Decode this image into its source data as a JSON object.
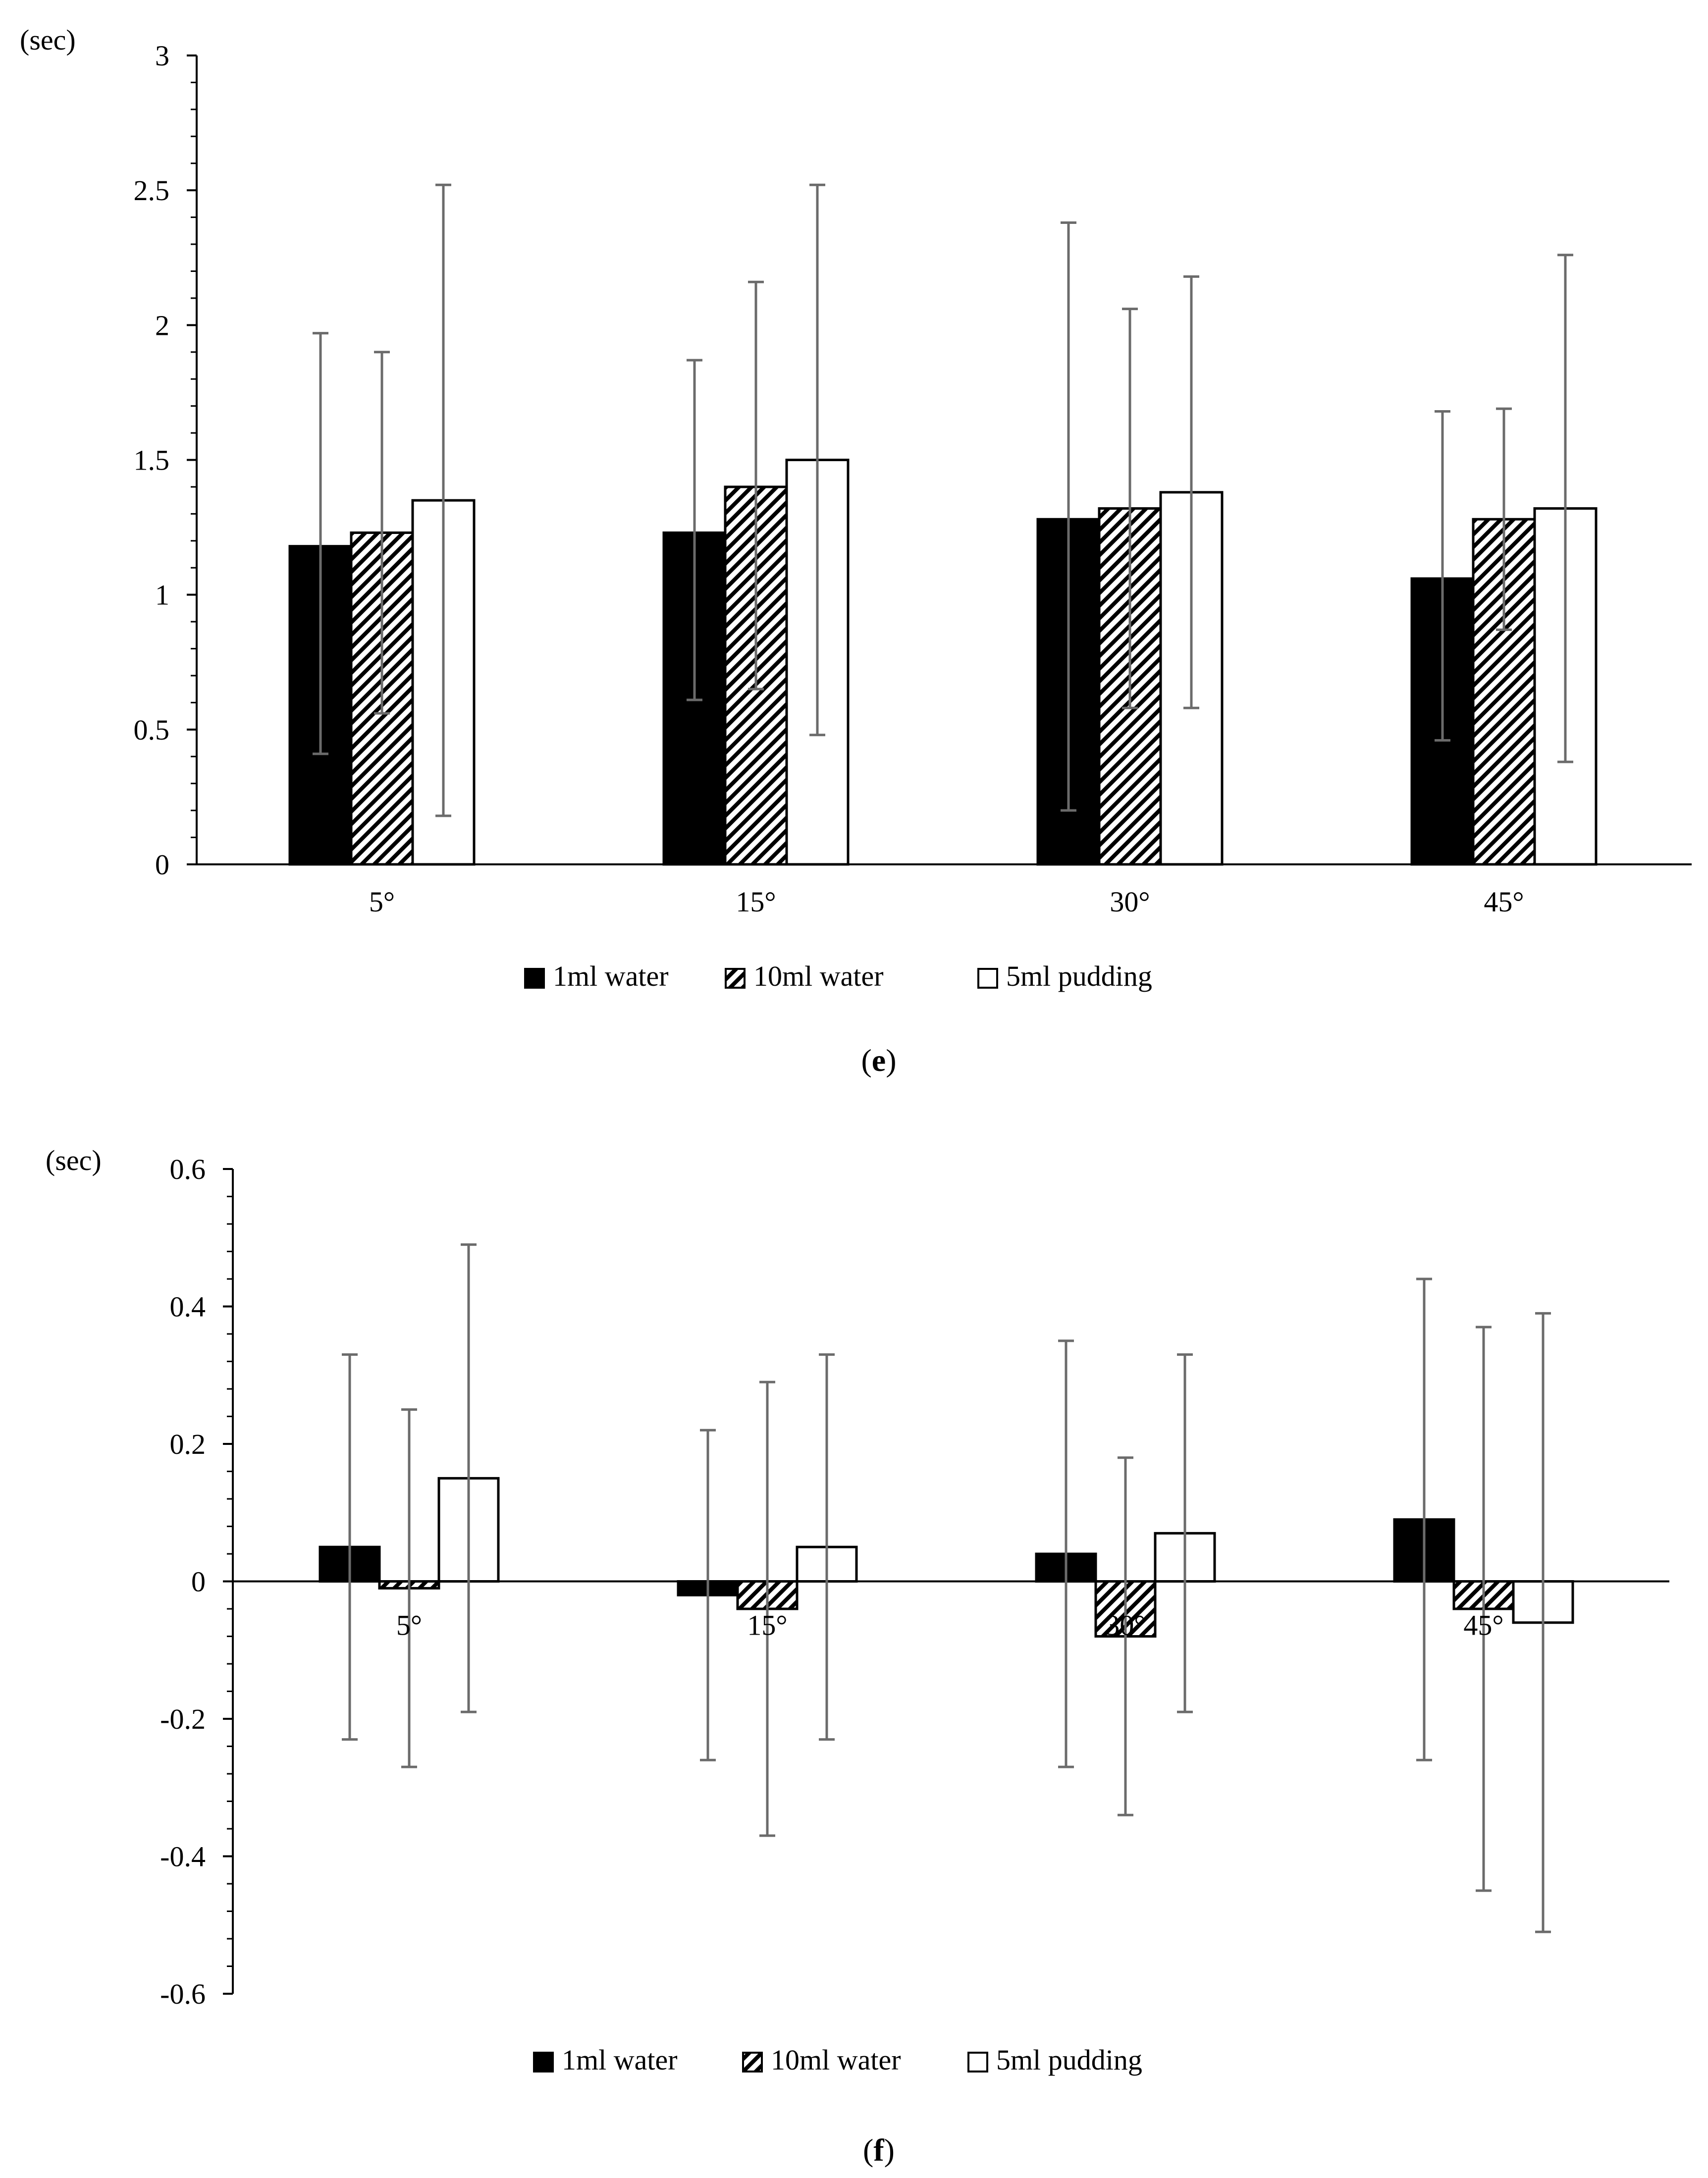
{
  "chart_data": [
    {
      "type": "bar",
      "panel_label": "e",
      "unit_label": "(sec)",
      "categories": [
        "5°",
        "15°",
        "30°",
        "45°"
      ],
      "series": [
        {
          "name": "1ml water",
          "values": [
            1.18,
            1.23,
            1.28,
            1.06
          ],
          "error_low": [
            0.41,
            0.61,
            0.2,
            0.46
          ],
          "error_high": [
            1.97,
            1.87,
            2.38,
            1.68
          ]
        },
        {
          "name": "10ml water",
          "values": [
            1.23,
            1.4,
            1.32,
            1.28
          ],
          "error_low": [
            0.56,
            0.65,
            0.58,
            0.87
          ],
          "error_high": [
            1.9,
            2.16,
            2.06,
            1.69
          ]
        },
        {
          "name": "5ml pudding",
          "values": [
            1.35,
            1.5,
            1.38,
            1.32
          ],
          "error_low": [
            0.18,
            0.48,
            0.58,
            0.38
          ],
          "error_high": [
            2.52,
            2.52,
            2.18,
            2.26
          ]
        }
      ],
      "ylim": [
        0,
        3
      ],
      "yticks": [
        0,
        0.5,
        1,
        1.5,
        2,
        2.5,
        3
      ],
      "ytick_labels": [
        "0",
        "0.5",
        "1",
        "1.5",
        "2",
        "2.5",
        "3"
      ],
      "xlabel": "",
      "ylabel": "(sec)",
      "legend": "bottom-center",
      "grid": false
    },
    {
      "type": "bar",
      "panel_label": "f",
      "unit_label": "(sec)",
      "categories": [
        "5°",
        "15°",
        "30°",
        "45°"
      ],
      "series": [
        {
          "name": "1ml water",
          "values": [
            0.05,
            -0.02,
            0.04,
            0.09
          ],
          "error_low": [
            -0.23,
            -0.26,
            -0.27,
            -0.26
          ],
          "error_high": [
            0.33,
            0.22,
            0.35,
            0.44
          ]
        },
        {
          "name": "10ml water",
          "values": [
            -0.01,
            -0.04,
            -0.08,
            -0.04
          ],
          "error_low": [
            -0.27,
            -0.37,
            -0.34,
            -0.45
          ],
          "error_high": [
            0.25,
            0.29,
            0.18,
            0.37
          ]
        },
        {
          "name": "5ml pudding",
          "values": [
            0.15,
            0.05,
            0.07,
            -0.06
          ],
          "error_low": [
            -0.19,
            -0.23,
            -0.19,
            -0.51
          ],
          "error_high": [
            0.49,
            0.33,
            0.33,
            0.39
          ]
        }
      ],
      "ylim": [
        -0.6,
        0.6
      ],
      "yticks": [
        -0.6,
        -0.4,
        -0.2,
        0,
        0.2,
        0.4,
        0.6
      ],
      "ytick_labels": [
        "-0.6",
        "-0.4",
        "-0.2",
        "0",
        "0.2",
        "0.4",
        "0.6"
      ],
      "xlabel": "",
      "ylabel": "(sec)",
      "legend": "bottom-center",
      "grid": false
    }
  ],
  "colors": {
    "series_fill": [
      "#000000",
      "hatch",
      "#ffffff"
    ],
    "bar_stroke": "#000000",
    "error_bar": "#6b6b6b",
    "axis": "#000000"
  }
}
